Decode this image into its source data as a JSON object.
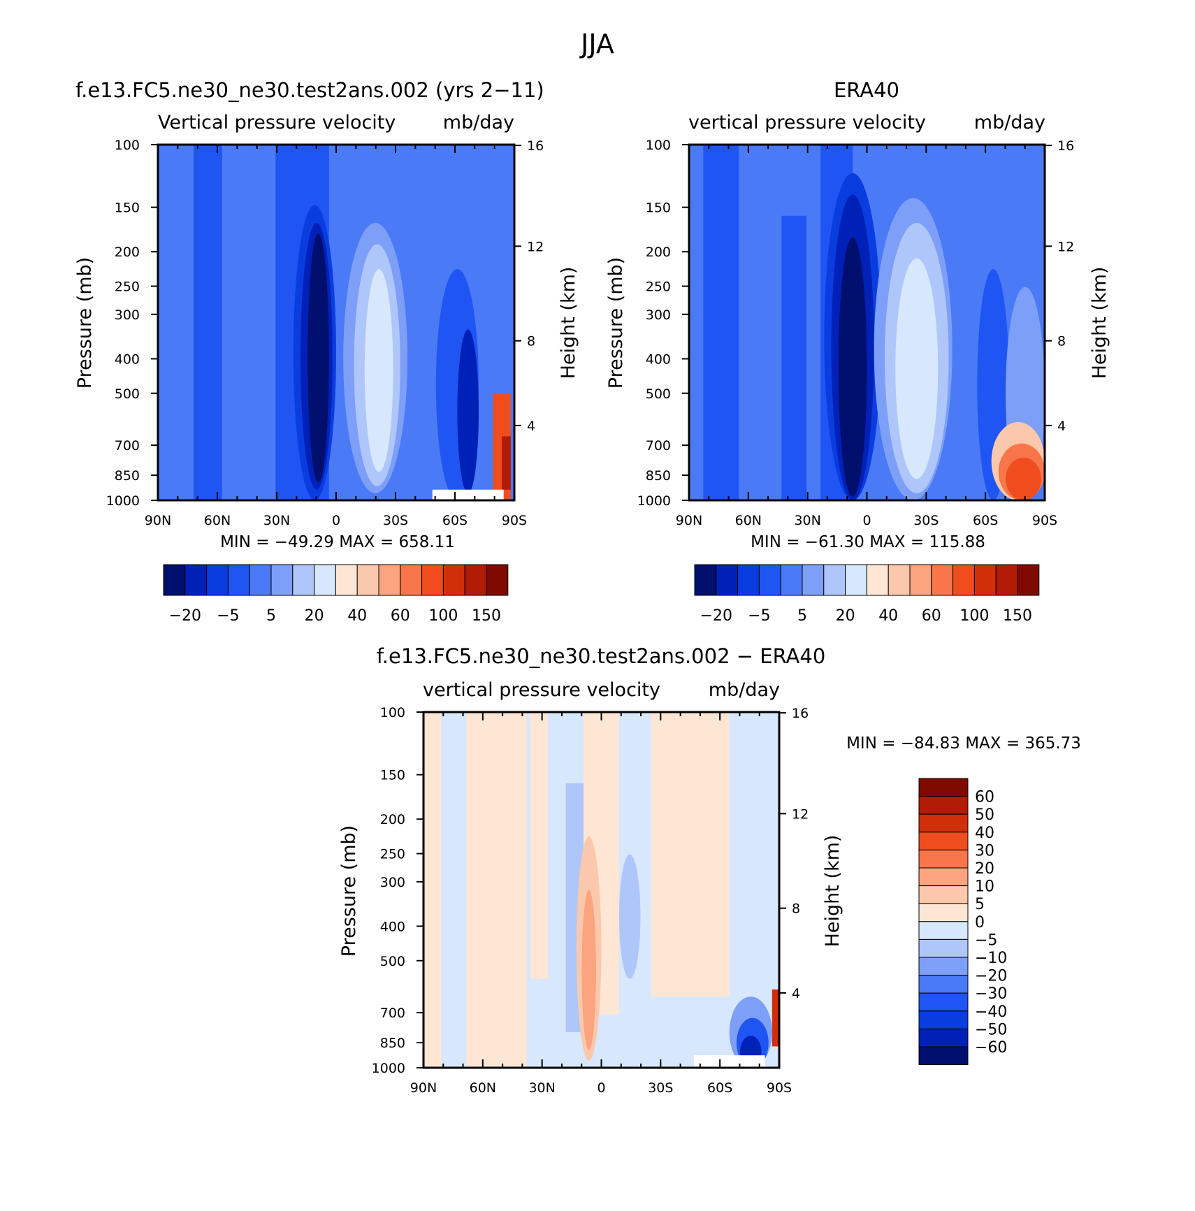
{
  "figure": {
    "main_title": "JJA"
  },
  "chart_data": [
    {
      "type": "heatmap",
      "title": "f.e13.FC5.ne30_ne30.test2ans.002 (yrs 2−11)",
      "subtitle_left": "Vertical pressure velocity",
      "subtitle_right": "mb/day",
      "xlabel": "",
      "ylabel": "Pressure (mb)",
      "y2label": "Height (km)",
      "xticks": [
        "90N",
        "60N",
        "30N",
        "0",
        "30S",
        "60S",
        "90S"
      ],
      "yticks": [
        100,
        150,
        200,
        250,
        300,
        400,
        500,
        700,
        850,
        1000
      ],
      "y2ticks": [
        16,
        12,
        8,
        4
      ],
      "ylim": [
        1000,
        100
      ],
      "yscale": "log",
      "stats": "MIN = −49.29   MAX = 658.11",
      "colorbar_labels": [
        "−20",
        "−5",
        "5",
        "20",
        "40",
        "60",
        "100",
        "150"
      ],
      "colorbar_colors": [
        "#000f6e",
        "#0021b8",
        "#0a3de0",
        "#1f55f2",
        "#4a7af5",
        "#7d9ff7",
        "#afc6fa",
        "#d7e7fc",
        "#fde6d4",
        "#fcc8ac",
        "#fba47f",
        "#f8764a",
        "#f04d1f",
        "#d12e0a",
        "#b01c05",
        "#7e0a00"
      ]
    },
    {
      "type": "heatmap",
      "title": "ERA40",
      "subtitle_left": "vertical pressure velocity",
      "subtitle_right": "mb/day",
      "xlabel": "",
      "ylabel": "Pressure (mb)",
      "y2label": "Height (km)",
      "xticks": [
        "90N",
        "60N",
        "30N",
        "0",
        "30S",
        "60S",
        "90S"
      ],
      "yticks": [
        100,
        150,
        200,
        250,
        300,
        400,
        500,
        700,
        850,
        1000
      ],
      "y2ticks": [
        16,
        12,
        8,
        4
      ],
      "ylim": [
        1000,
        100
      ],
      "yscale": "log",
      "stats": "MIN = −61.30   MAX = 115.88",
      "colorbar_labels": [
        "−20",
        "−5",
        "5",
        "20",
        "40",
        "60",
        "100",
        "150"
      ],
      "colorbar_colors": [
        "#000f6e",
        "#0021b8",
        "#0a3de0",
        "#1f55f2",
        "#4a7af5",
        "#7d9ff7",
        "#afc6fa",
        "#d7e7fc",
        "#fde6d4",
        "#fcc8ac",
        "#fba47f",
        "#f8764a",
        "#f04d1f",
        "#d12e0a",
        "#b01c05",
        "#7e0a00"
      ]
    },
    {
      "type": "heatmap",
      "title": "f.e13.FC5.ne30_ne30.test2ans.002 − ERA40",
      "subtitle_left": "vertical pressure velocity",
      "subtitle_right": "mb/day",
      "xlabel": "",
      "ylabel": "Pressure (mb)",
      "y2label": "Height (km)",
      "xticks": [
        "90N",
        "60N",
        "30N",
        "0",
        "30S",
        "60S",
        "90S"
      ],
      "yticks": [
        100,
        150,
        200,
        250,
        300,
        400,
        500,
        700,
        850,
        1000
      ],
      "y2ticks": [
        16,
        12,
        8,
        4
      ],
      "ylim": [
        1000,
        100
      ],
      "yscale": "log",
      "stats": "MIN = −84.83   MAX = 365.73",
      "colorbar_labels": [
        "60",
        "50",
        "40",
        "30",
        "20",
        "10",
        "5",
        "0",
        "−5",
        "−10",
        "−20",
        "−30",
        "−40",
        "−50",
        "−60"
      ],
      "colorbar_colors": [
        "#7e0a00",
        "#b01c05",
        "#d12e0a",
        "#f04d1f",
        "#f8764a",
        "#fba47f",
        "#fcc8ac",
        "#fde6d4",
        "#d7e7fc",
        "#afc6fa",
        "#7d9ff7",
        "#4a7af5",
        "#1f55f2",
        "#0a3de0",
        "#0021b8",
        "#000f6e"
      ]
    }
  ]
}
